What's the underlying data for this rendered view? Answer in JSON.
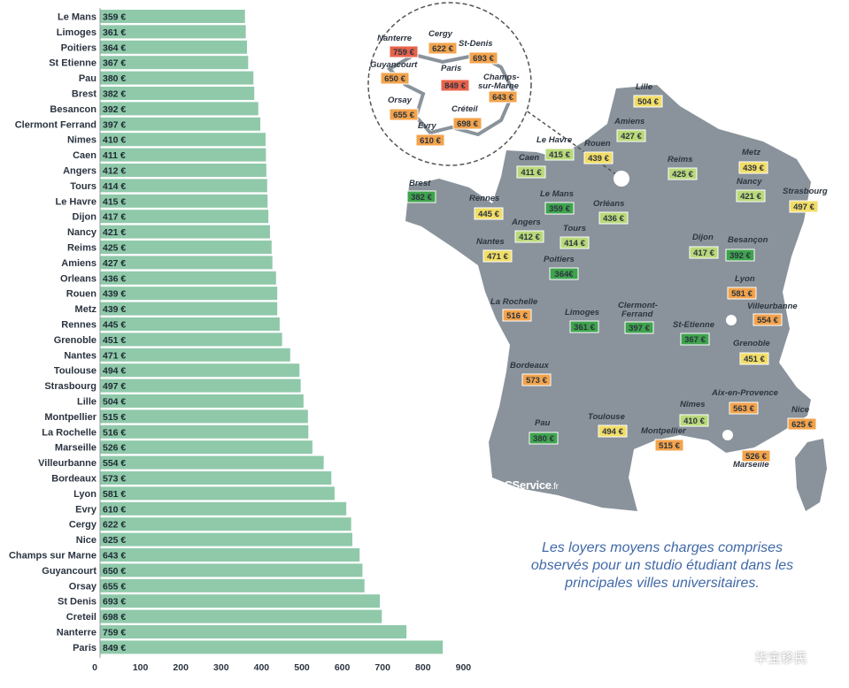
{
  "chart_data": {
    "type": "bar",
    "orientation": "horizontal",
    "categories": [
      "Le Mans",
      "Limoges",
      "Poitiers",
      "St Etienne",
      "Pau",
      "Brest",
      "Besancon",
      "Clermont Ferrand",
      "Nimes",
      "Caen",
      "Angers",
      "Tours",
      "Le Havre",
      "Dijon",
      "Nancy",
      "Reims",
      "Amiens",
      "Orleans",
      "Rouen",
      "Metz",
      "Rennes",
      "Grenoble",
      "Nantes",
      "Toulouse",
      "Strasbourg",
      "Lille",
      "Montpellier",
      "La Rochelle",
      "Marseille",
      "Villeurbanne",
      "Bordeaux",
      "Lyon",
      "Evry",
      "Cergy",
      "Nice",
      "Champs sur Marne",
      "Guyancourt",
      "Orsay",
      "St Denis",
      "Creteil",
      "Nanterre",
      "Paris"
    ],
    "values": [
      359,
      361,
      364,
      367,
      380,
      382,
      392,
      397,
      410,
      411,
      412,
      414,
      415,
      417,
      421,
      425,
      427,
      436,
      439,
      439,
      445,
      451,
      471,
      494,
      497,
      504,
      515,
      516,
      526,
      554,
      573,
      581,
      610,
      622,
      625,
      643,
      650,
      655,
      693,
      698,
      759,
      849
    ],
    "value_labels": [
      "359 €",
      "361 €",
      "364 €",
      "367 €",
      "380 €",
      "382 €",
      "392 €",
      "397 €",
      "410 €",
      "411 €",
      "412 €",
      "414 €",
      "415 €",
      "417 €",
      "421 €",
      "425 €",
      "427 €",
      "436 €",
      "439 €",
      "439 €",
      "445 €",
      "451 €",
      "471 €",
      "494 €",
      "497 €",
      "504 €",
      "515 €",
      "516 €",
      "526 €",
      "554 €",
      "573 €",
      "581 €",
      "610 €",
      "622 €",
      "625 €",
      "643 €",
      "650 €",
      "655 €",
      "693 €",
      "698 €",
      "759 €",
      "849 €"
    ],
    "xticks": [
      "0",
      "100",
      "200",
      "300",
      "400",
      "500",
      "600",
      "700",
      "800",
      "900"
    ],
    "xlim": [
      0,
      900
    ],
    "bar_color": "#8fc9aa",
    "grid": false
  },
  "map": {
    "country_color": "#8a939b",
    "colors": {
      "green": "#3fa34d",
      "light_green": "#b9d97a",
      "yellow": "#f2dd66",
      "orange": "#f3a34b",
      "red": "#e8634b"
    },
    "cities": [
      {
        "name": "Lille",
        "price": "504 €",
        "level": "yellow"
      },
      {
        "name": "Amiens",
        "price": "427 €",
        "level": "light_green"
      },
      {
        "name": "Le Havre",
        "price": "415 €",
        "level": "light_green"
      },
      {
        "name": "Rouen",
        "price": "439 €",
        "level": "yellow"
      },
      {
        "name": "Caen",
        "price": "411 €",
        "level": "light_green"
      },
      {
        "name": "Reims",
        "price": "425 €",
        "level": "light_green"
      },
      {
        "name": "Metz",
        "price": "439 €",
        "level": "yellow"
      },
      {
        "name": "Nancy",
        "price": "421 €",
        "level": "light_green"
      },
      {
        "name": "Strasbourg",
        "price": "497 €",
        "level": "yellow"
      },
      {
        "name": "Brest",
        "price": "382 €",
        "level": "green"
      },
      {
        "name": "Rennes",
        "price": "445 €",
        "level": "yellow"
      },
      {
        "name": "Le Mans",
        "price": "359 €",
        "level": "green"
      },
      {
        "name": "Orléans",
        "price": "436 €",
        "level": "light_green"
      },
      {
        "name": "Angers",
        "price": "412 €",
        "level": "light_green"
      },
      {
        "name": "Tours",
        "price": "414 €",
        "level": "light_green"
      },
      {
        "name": "Nantes",
        "price": "471 €",
        "level": "yellow"
      },
      {
        "name": "Poitiers",
        "price": "364€",
        "level": "green"
      },
      {
        "name": "Dijon",
        "price": "417 €",
        "level": "light_green"
      },
      {
        "name": "Besançon",
        "price": "392 €",
        "level": "green"
      },
      {
        "name": "La Rochelle",
        "price": "516 €",
        "level": "orange"
      },
      {
        "name": "Limoges",
        "price": "361 €",
        "level": "green"
      },
      {
        "name": "Clermont-Ferrand",
        "price": "397 €",
        "level": "green"
      },
      {
        "name": "St-Etienne",
        "price": "367 €",
        "level": "green"
      },
      {
        "name": "Lyon",
        "price": "581 €",
        "level": "orange"
      },
      {
        "name": "Villeurbanne",
        "price": "554 €",
        "level": "orange"
      },
      {
        "name": "Grenoble",
        "price": "451 €",
        "level": "yellow"
      },
      {
        "name": "Bordeaux",
        "price": "573 €",
        "level": "orange"
      },
      {
        "name": "Aix-en-Provence",
        "price": "563 €",
        "level": "orange"
      },
      {
        "name": "Nîmes",
        "price": "410 €",
        "level": "light_green"
      },
      {
        "name": "Nice",
        "price": "625 €",
        "level": "orange"
      },
      {
        "name": "Pau",
        "price": "380 €",
        "level": "green"
      },
      {
        "name": "Toulouse",
        "price": "494 €",
        "level": "yellow"
      },
      {
        "name": "Montpellier",
        "price": "515 €",
        "level": "orange"
      },
      {
        "name": "Marseille",
        "price": "526 €",
        "level": "orange"
      }
    ],
    "inset": [
      {
        "name": "Nanterre",
        "price": "759 €",
        "level": "red"
      },
      {
        "name": "Cergy",
        "price": "622 €",
        "level": "orange"
      },
      {
        "name": "St-Denis",
        "price": "693 €",
        "level": "orange"
      },
      {
        "name": "Guyancourt",
        "price": "650 €",
        "level": "orange"
      },
      {
        "name": "Paris",
        "price": "849 €",
        "level": "red"
      },
      {
        "name": "Champs-sur-Marne",
        "price": "643 €",
        "level": "orange"
      },
      {
        "name": "Orsay",
        "price": "655 €",
        "level": "orange"
      },
      {
        "name": "Créteil",
        "price": "698 €",
        "level": "orange"
      },
      {
        "name": "Evry",
        "price": "610 €",
        "level": "orange"
      }
    ]
  },
  "logo": {
    "text": "LOCService",
    "suffix": ".fr"
  },
  "caption": {
    "line1": "Les loyers moyens charges comprises",
    "line2": "observés pour un studio étudiant dans les",
    "line3": "principales villes universitaires."
  },
  "watermark": "华宝移民"
}
